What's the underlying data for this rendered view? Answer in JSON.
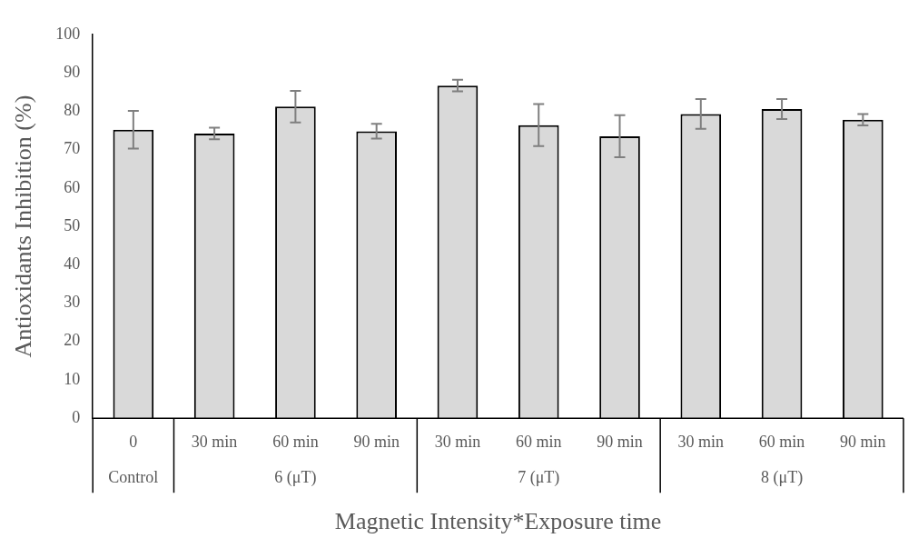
{
  "chart_data": {
    "type": "bar",
    "xlabel": "Magnetic Intensity*Exposure time",
    "ylabel": "Antioxidants Inhibition (%)",
    "categories": [
      "0",
      "30 min",
      "60 min",
      "90 min",
      "30 min",
      "60 min",
      "90 min",
      "30 min",
      "60 min",
      "90 min"
    ],
    "values": [
      75.2,
      74.2,
      81.2,
      74.8,
      86.7,
      76.4,
      73.5,
      79.3,
      80.6,
      77.8
    ],
    "errors": [
      4.9,
      1.5,
      4.1,
      1.9,
      1.5,
      5.5,
      5.5,
      3.9,
      2.6,
      1.5
    ],
    "color": "#d9d9d9",
    "ylim": [
      0,
      100
    ],
    "yticks": [
      0,
      10,
      20,
      30,
      40,
      50,
      60,
      70,
      80,
      90,
      100
    ],
    "annotations": [
      "Control",
      "6 (μT)",
      "7 (μT)",
      "8 (μT)"
    ],
    "grid": false,
    "legend": false
  }
}
